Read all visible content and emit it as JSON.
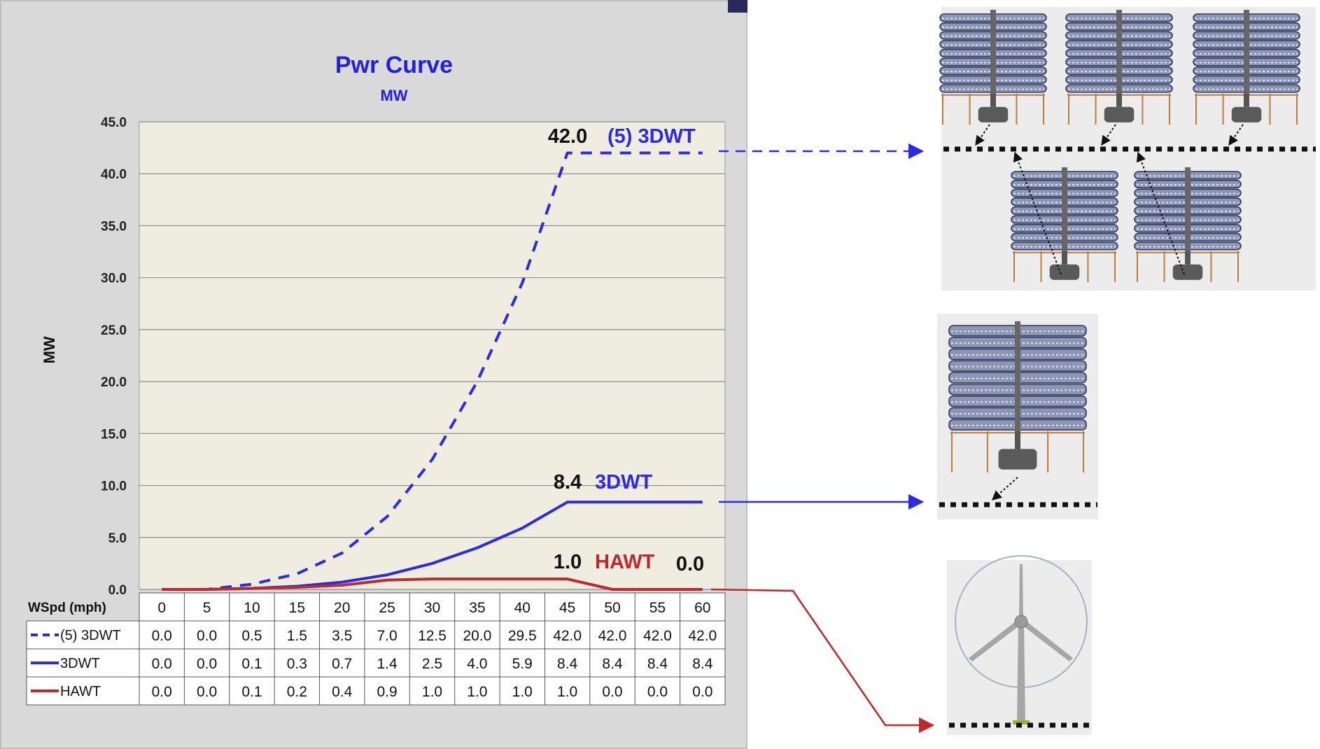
{
  "chart_data": {
    "type": "line",
    "title": "Pwr Curve",
    "subtitle": "MW",
    "ylabel": "MW",
    "x_header": "WSpd (mph)",
    "ylim": [
      0,
      45
    ],
    "yticks": [
      "0.0",
      "5.0",
      "10.0",
      "15.0",
      "20.0",
      "25.0",
      "30.0",
      "35.0",
      "40.0",
      "45.0"
    ],
    "x": [
      0,
      5,
      10,
      15,
      20,
      25,
      30,
      35,
      40,
      45,
      50,
      55,
      60
    ],
    "series": [
      {
        "name": "(5) 3DWT",
        "color": "#2a2ae8",
        "style": "dashed",
        "values": [
          0.0,
          0.0,
          0.5,
          1.5,
          3.5,
          7.0,
          12.5,
          20.0,
          29.5,
          42.0,
          42.0,
          42.0,
          42.0
        ]
      },
      {
        "name": "3DWT",
        "color": "#2a2ae8",
        "style": "solid",
        "values": [
          0.0,
          0.0,
          0.1,
          0.3,
          0.7,
          1.4,
          2.5,
          4.0,
          5.9,
          8.4,
          8.4,
          8.4,
          8.4
        ]
      },
      {
        "name": "HAWT",
        "color": "#c0282a",
        "style": "solid",
        "values": [
          0.0,
          0.0,
          0.1,
          0.2,
          0.4,
          0.9,
          1.0,
          1.0,
          1.0,
          1.0,
          0.0,
          0.0,
          0.0
        ]
      }
    ],
    "annotations": [
      {
        "value": "42.0",
        "label": "(5) 3DWT",
        "label_color": "#2a2ae8"
      },
      {
        "value": "8.4",
        "label": "3DWT",
        "label_color": "#2a2ae8"
      },
      {
        "value": "1.0",
        "label": "HAWT",
        "label_color": "#c0282a",
        "extra": "0.0"
      }
    ],
    "grid": true,
    "legend": "data-table",
    "colors": {
      "plot_bg": "#efede0",
      "panel_bg": "#d9d9d9",
      "blue": "#2a2ae8",
      "red": "#c0282a"
    }
  },
  "illustrations": [
    "five-3dwt-array",
    "single-3dwt",
    "hawt-turbine"
  ]
}
